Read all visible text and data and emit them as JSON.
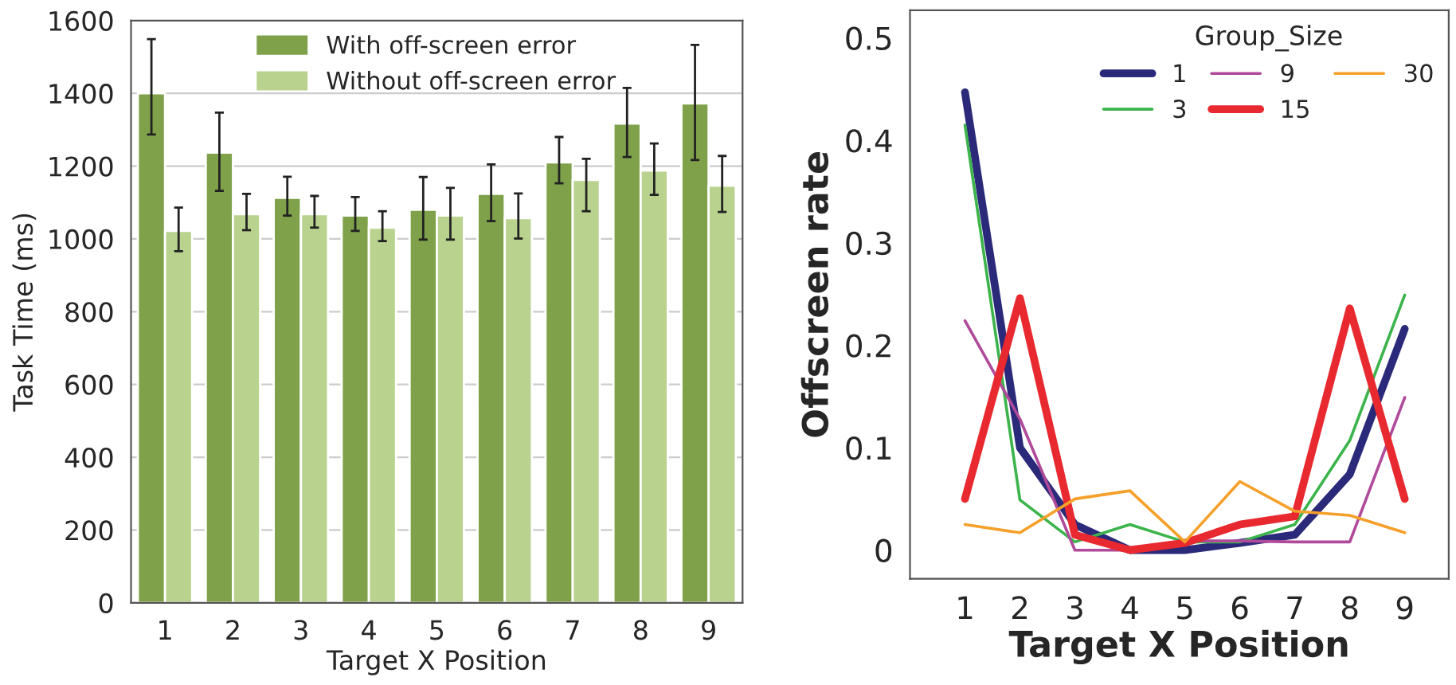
{
  "chart_data": [
    {
      "type": "bar",
      "xlabel": "Target X Position",
      "ylabel": "Task Time (ms)",
      "categories": [
        "1",
        "2",
        "3",
        "4",
        "5",
        "6",
        "7",
        "8",
        "9"
      ],
      "series": [
        {
          "name": "With off-screen error",
          "color": "#7fa14a",
          "values": [
            1400,
            1237,
            1113,
            1064,
            1080,
            1124,
            1210,
            1317,
            1372
          ],
          "errors": [
            [
              1287,
              1549
            ],
            [
              1132,
              1347
            ],
            [
              1064,
              1171
            ],
            [
              1022,
              1115
            ],
            [
              998,
              1170
            ],
            [
              1049,
              1205
            ],
            [
              1153,
              1280
            ],
            [
              1225,
              1415
            ],
            [
              1217,
              1533
            ]
          ]
        },
        {
          "name": "Without off-screen error",
          "color": "#b9d38f",
          "values": [
            1022,
            1068,
            1068,
            1031,
            1064,
            1057,
            1162,
            1188,
            1146
          ],
          "errors": [
            [
              966,
              1086
            ],
            [
              1024,
              1124
            ],
            [
              1031,
              1118
            ],
            [
              994,
              1076
            ],
            [
              998,
              1140
            ],
            [
              1001,
              1125
            ],
            [
              1076,
              1220
            ],
            [
              1121,
              1262
            ],
            [
              1074,
              1228
            ]
          ]
        }
      ],
      "ylim": [
        0,
        1600
      ],
      "yticks": [
        0,
        200,
        400,
        600,
        800,
        1000,
        1200,
        1400,
        1600
      ],
      "grid": "y",
      "legend": "top"
    },
    {
      "type": "line",
      "xlabel": "Target X Position",
      "ylabel": "Offscreen rate",
      "legend_title": "Group_Size",
      "x": [
        1,
        2,
        3,
        4,
        5,
        6,
        7,
        8,
        9
      ],
      "series": [
        {
          "name": "1",
          "color": "#2b2a7a",
          "values": [
            0.447,
            0.1,
            0.025,
            0,
            0,
            0.007,
            0.015,
            0.074,
            0.216
          ]
        },
        {
          "name": "3",
          "color": "#3cb44b",
          "values": [
            0.415,
            0.049,
            0.008,
            0.025,
            0.008,
            0.008,
            0.025,
            0.107,
            0.249
          ]
        },
        {
          "name": "9",
          "color": "#b04a9a",
          "values": [
            0.224,
            0.128,
            0,
            0,
            0.009,
            0.009,
            0.008,
            0.008,
            0.149
          ]
        },
        {
          "name": "15",
          "color": "#e8292f",
          "values": [
            0.05,
            0.246,
            0.015,
            0,
            0.007,
            0.025,
            0.033,
            0.236,
            0.05
          ]
        },
        {
          "name": "30",
          "color": "#f5a02a",
          "values": [
            0.025,
            0.017,
            0.05,
            0.058,
            0.008,
            0.067,
            0.038,
            0.034,
            0.017
          ]
        }
      ],
      "xlim": [
        0,
        9.8
      ],
      "xticks": [
        1,
        2,
        3,
        4,
        5,
        6,
        7,
        8,
        9
      ],
      "ylim": [
        -0.028,
        0.527
      ],
      "yticks": [
        0,
        0.1,
        0.2,
        0.3,
        0.4,
        0.5
      ],
      "legend": "top right",
      "line_style": "solid"
    }
  ]
}
